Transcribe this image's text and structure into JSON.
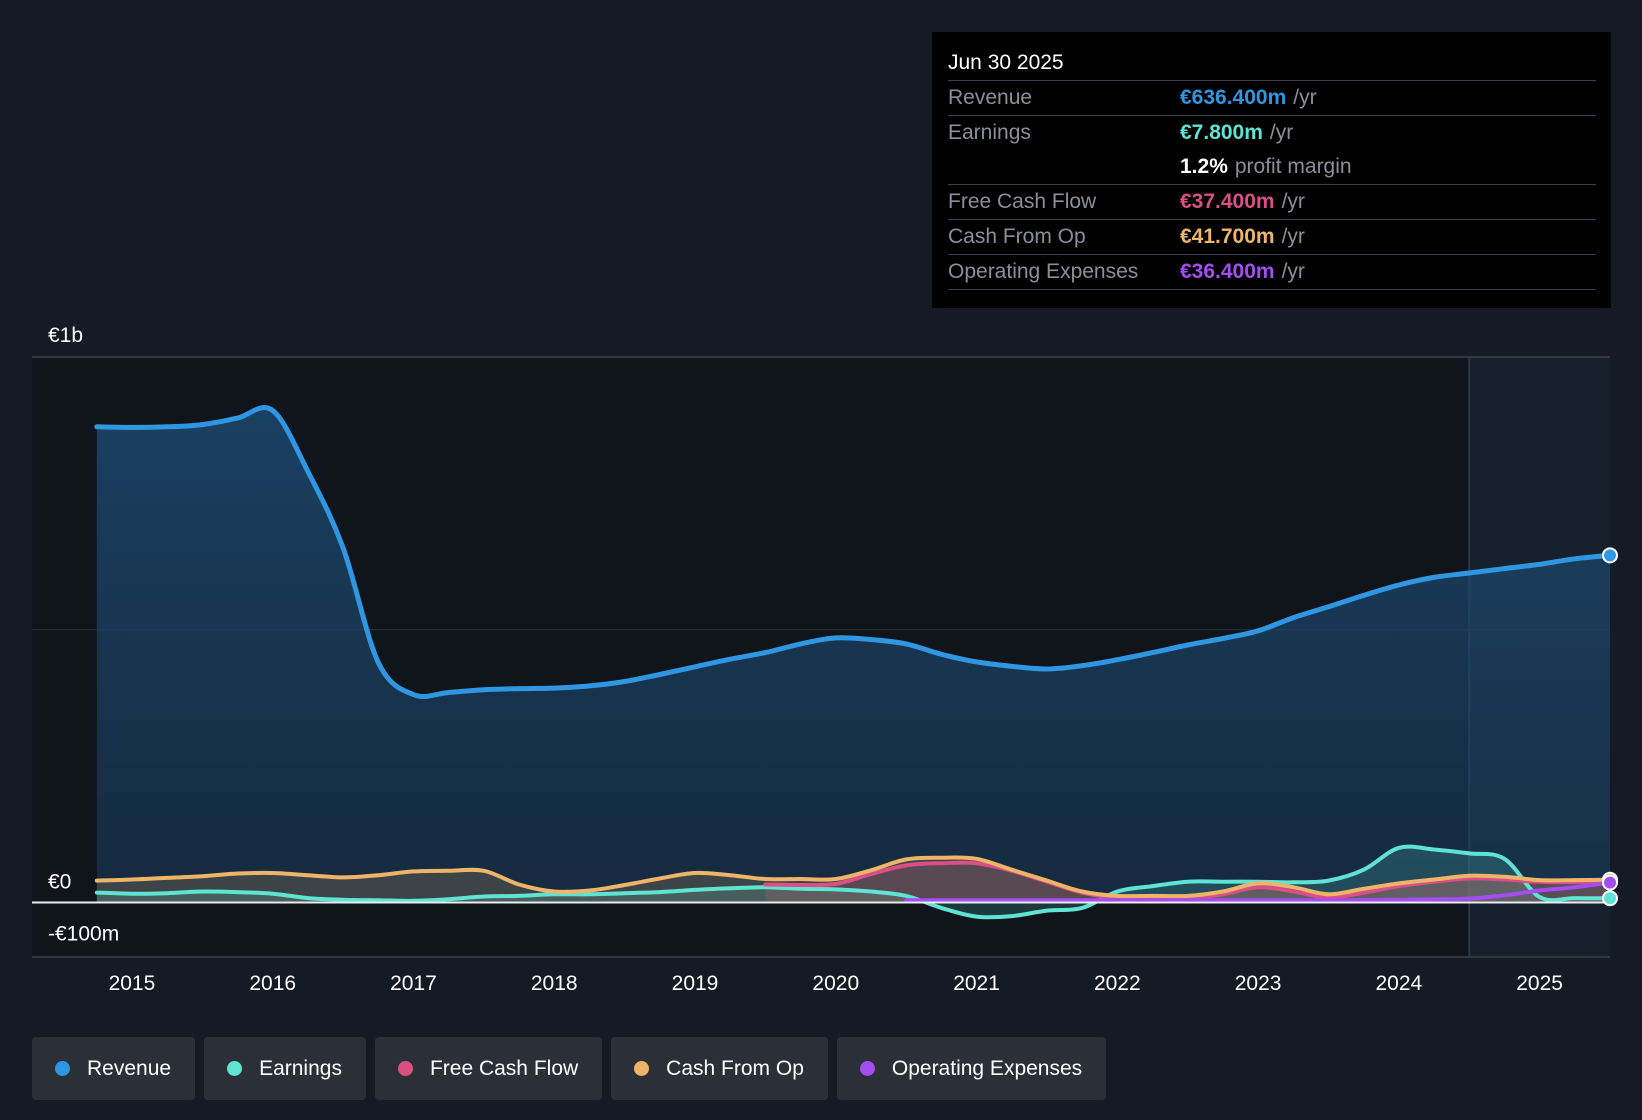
{
  "tooltip": {
    "date": "Jun 30 2025",
    "rows": [
      {
        "label": "Revenue",
        "value": "€636.400m",
        "unit": "/yr",
        "color": "#2f96e2"
      },
      {
        "label": "Earnings",
        "value": "€7.800m",
        "unit": "/yr",
        "color": "#5fe3d2"
      },
      {
        "margin_value": "1.2%",
        "margin_text": "profit margin"
      },
      {
        "label": "Free Cash Flow",
        "value": "€37.400m",
        "unit": "/yr",
        "color": "#d94f86"
      },
      {
        "label": "Cash From Op",
        "value": "€41.700m",
        "unit": "/yr",
        "color": "#eeb56a"
      },
      {
        "label": "Operating Expenses",
        "value": "€36.400m",
        "unit": "/yr",
        "color": "#a24ef0"
      }
    ]
  },
  "legend": [
    {
      "label": "Revenue",
      "color": "#2f96e2"
    },
    {
      "label": "Earnings",
      "color": "#5fe3d2"
    },
    {
      "label": "Free Cash Flow",
      "color": "#d94f86"
    },
    {
      "label": "Cash From Op",
      "color": "#eeb56a"
    },
    {
      "label": "Operating Expenses",
      "color": "#a24ef0"
    }
  ],
  "chart_data": {
    "type": "area",
    "title": "",
    "xlabel": "",
    "ylabel": "",
    "y_tick_labels": [
      {
        "value": 1000,
        "label": "€1b"
      },
      {
        "value": 0,
        "label": "€0"
      },
      {
        "value": -100,
        "label": "-€100m"
      }
    ],
    "ylim": [
      -100,
      1000
    ],
    "xlim": [
      2014.29,
      2025.5
    ],
    "x_ticks": [
      2015,
      2016,
      2017,
      2018,
      2019,
      2020,
      2021,
      2022,
      2023,
      2024,
      2025
    ],
    "forecast_shading_start": 2024.5,
    "grid": "horizontal",
    "legend_position": "bottom",
    "series": [
      {
        "name": "Revenue",
        "color": "#2f96e2",
        "fill": true,
        "line_width": 5,
        "points": [
          [
            2014.75,
            872
          ],
          [
            2015.0,
            871
          ],
          [
            2015.25,
            872
          ],
          [
            2015.5,
            876
          ],
          [
            2015.75,
            888
          ],
          [
            2016.0,
            902
          ],
          [
            2016.25,
            790
          ],
          [
            2016.5,
            650
          ],
          [
            2016.75,
            440
          ],
          [
            2017.0,
            381
          ],
          [
            2017.25,
            385
          ],
          [
            2017.5,
            390
          ],
          [
            2017.75,
            392
          ],
          [
            2018.0,
            393
          ],
          [
            2018.25,
            397
          ],
          [
            2018.5,
            405
          ],
          [
            2018.75,
            418
          ],
          [
            2019.0,
            432
          ],
          [
            2019.25,
            446
          ],
          [
            2019.5,
            458
          ],
          [
            2019.75,
            474
          ],
          [
            2020.0,
            485
          ],
          [
            2020.25,
            482
          ],
          [
            2020.5,
            474
          ],
          [
            2020.75,
            455
          ],
          [
            2021.0,
            441
          ],
          [
            2021.25,
            433
          ],
          [
            2021.5,
            428
          ],
          [
            2021.75,
            434
          ],
          [
            2022.0,
            445
          ],
          [
            2022.25,
            458
          ],
          [
            2022.5,
            472
          ],
          [
            2022.75,
            484
          ],
          [
            2023.0,
            498
          ],
          [
            2023.25,
            522
          ],
          [
            2023.5,
            542
          ],
          [
            2023.75,
            563
          ],
          [
            2024.0,
            582
          ],
          [
            2024.25,
            596
          ],
          [
            2024.5,
            604
          ],
          [
            2024.75,
            612
          ],
          [
            2025.0,
            620
          ],
          [
            2025.25,
            630
          ],
          [
            2025.5,
            636.4
          ]
        ]
      },
      {
        "name": "Earnings",
        "color": "#5fe3d2",
        "fill": true,
        "line_width": 4,
        "points": [
          [
            2014.75,
            18
          ],
          [
            2015.0,
            16
          ],
          [
            2015.25,
            17
          ],
          [
            2015.5,
            20
          ],
          [
            2015.75,
            19
          ],
          [
            2016.0,
            16
          ],
          [
            2016.25,
            8
          ],
          [
            2016.5,
            5
          ],
          [
            2016.75,
            4
          ],
          [
            2017.0,
            3
          ],
          [
            2017.25,
            6
          ],
          [
            2017.5,
            11
          ],
          [
            2017.75,
            12
          ],
          [
            2018.0,
            15
          ],
          [
            2018.25,
            15
          ],
          [
            2018.5,
            17
          ],
          [
            2018.75,
            19
          ],
          [
            2019.0,
            23
          ],
          [
            2019.25,
            26
          ],
          [
            2019.5,
            28
          ],
          [
            2019.75,
            25
          ],
          [
            2020.0,
            24
          ],
          [
            2020.25,
            20
          ],
          [
            2020.5,
            12
          ],
          [
            2020.75,
            -10
          ],
          [
            2021.0,
            -26
          ],
          [
            2021.25,
            -25
          ],
          [
            2021.5,
            -15
          ],
          [
            2021.75,
            -10
          ],
          [
            2022.0,
            20
          ],
          [
            2022.25,
            30
          ],
          [
            2022.5,
            38
          ],
          [
            2022.75,
            38
          ],
          [
            2023.0,
            38
          ],
          [
            2023.25,
            37
          ],
          [
            2023.5,
            40
          ],
          [
            2023.75,
            60
          ],
          [
            2024.0,
            100
          ],
          [
            2024.25,
            97
          ],
          [
            2024.5,
            90
          ],
          [
            2024.75,
            80
          ],
          [
            2025.0,
            10
          ],
          [
            2025.25,
            8
          ],
          [
            2025.5,
            7.8
          ]
        ]
      },
      {
        "name": "Free Cash Flow",
        "color": "#d94f86",
        "fill": true,
        "line_width": 4,
        "points": [
          [
            2019.5,
            33
          ],
          [
            2019.75,
            32
          ],
          [
            2020.0,
            34
          ],
          [
            2020.25,
            52
          ],
          [
            2020.5,
            68
          ],
          [
            2020.75,
            72
          ],
          [
            2021.0,
            72
          ],
          [
            2021.25,
            58
          ],
          [
            2021.5,
            38
          ],
          [
            2021.75,
            18
          ],
          [
            2022.0,
            8
          ],
          [
            2022.25,
            8
          ],
          [
            2022.5,
            7
          ],
          [
            2022.75,
            15
          ],
          [
            2023.0,
            28
          ],
          [
            2023.25,
            20
          ],
          [
            2023.5,
            9
          ],
          [
            2023.75,
            18
          ],
          [
            2024.0,
            30
          ],
          [
            2024.25,
            38
          ],
          [
            2024.5,
            44
          ],
          [
            2024.75,
            42
          ],
          [
            2025.0,
            38
          ],
          [
            2025.25,
            37
          ],
          [
            2025.5,
            37.4
          ]
        ]
      },
      {
        "name": "Cash From Op",
        "color": "#eeb56a",
        "fill": true,
        "line_width": 4,
        "points": [
          [
            2014.75,
            40
          ],
          [
            2015.0,
            42
          ],
          [
            2015.25,
            45
          ],
          [
            2015.5,
            48
          ],
          [
            2015.75,
            53
          ],
          [
            2016.0,
            54
          ],
          [
            2016.25,
            50
          ],
          [
            2016.5,
            46
          ],
          [
            2016.75,
            50
          ],
          [
            2017.0,
            57
          ],
          [
            2017.25,
            58
          ],
          [
            2017.5,
            58
          ],
          [
            2017.75,
            33
          ],
          [
            2018.0,
            20
          ],
          [
            2018.25,
            22
          ],
          [
            2018.5,
            32
          ],
          [
            2018.75,
            44
          ],
          [
            2019.0,
            54
          ],
          [
            2019.25,
            50
          ],
          [
            2019.5,
            43
          ],
          [
            2019.75,
            43
          ],
          [
            2020.0,
            43
          ],
          [
            2020.25,
            59
          ],
          [
            2020.5,
            79
          ],
          [
            2020.75,
            82
          ],
          [
            2021.0,
            80
          ],
          [
            2021.25,
            60
          ],
          [
            2021.5,
            40
          ],
          [
            2021.75,
            20
          ],
          [
            2022.0,
            12
          ],
          [
            2022.25,
            12
          ],
          [
            2022.5,
            12
          ],
          [
            2022.75,
            20
          ],
          [
            2023.0,
            35
          ],
          [
            2023.25,
            28
          ],
          [
            2023.5,
            15
          ],
          [
            2023.75,
            25
          ],
          [
            2024.0,
            35
          ],
          [
            2024.25,
            42
          ],
          [
            2024.5,
            49
          ],
          [
            2024.75,
            47
          ],
          [
            2025.0,
            41
          ],
          [
            2025.25,
            41
          ],
          [
            2025.5,
            41.7
          ]
        ]
      },
      {
        "name": "Operating Expenses",
        "color": "#a24ef0",
        "fill": false,
        "line_width": 4,
        "points": [
          [
            2020.5,
            4
          ],
          [
            2021.0,
            4
          ],
          [
            2021.5,
            4
          ],
          [
            2022.0,
            4
          ],
          [
            2022.5,
            4
          ],
          [
            2023.0,
            4
          ],
          [
            2023.5,
            4
          ],
          [
            2024.0,
            5
          ],
          [
            2024.25,
            6
          ],
          [
            2024.5,
            7
          ],
          [
            2024.75,
            13
          ],
          [
            2025.0,
            22
          ],
          [
            2025.25,
            28
          ],
          [
            2025.5,
            36.4
          ]
        ]
      }
    ]
  }
}
